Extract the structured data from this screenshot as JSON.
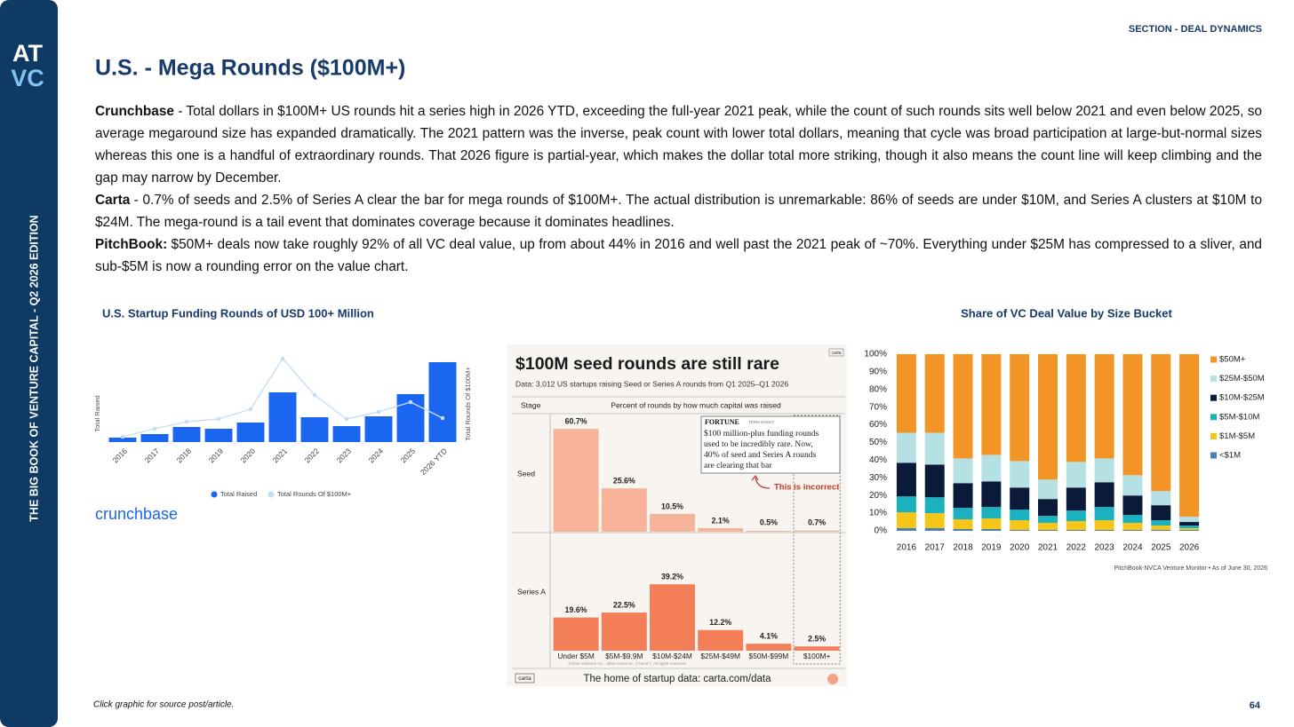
{
  "sidebar": {
    "title": "THE BIG BOOK OF VENTURE CAPITAL - Q2 2026 EDITION",
    "logo_top": "AT",
    "logo_bottom": "VC"
  },
  "header": {
    "section": "SECTION - DEAL DYNAMICS",
    "title": "U.S. - Mega Rounds ($100M+)"
  },
  "paragraphs": [
    {
      "lead": "Crunchbase",
      "text": "- Total dollars in $100M+ US rounds hit a series high in 2026 YTD, exceeding the full-year 2021 peak, while the count of such rounds sits well below 2021 and even below 2025, so average megaround size has expanded dramatically. The 2021 pattern was the inverse, peak count with lower total dollars, meaning that cycle was broad participation at large-but-normal sizes whereas this one is a handful of extraordinary rounds. That 2026 figure is partial-year, which makes the dollar total more striking, though it also means the count line will keep climbing and the gap may narrow by December."
    },
    {
      "lead": "Carta",
      "text": "- 0.7% of seeds and 2.5% of Series A clear the bar for mega rounds of $100M+. The actual distribution is unremarkable: 86% of seeds are under $10M, and Series A clusters at $10M to $24M. The mega-round is a tail event that dominates coverage because it dominates headlines."
    },
    {
      "lead": "PitchBook:",
      "text": "$50M+ deals now take roughly 92% of all VC deal value, up from about 44% in 2016 and well past the 2021 peak of ~70%. Everything under $25M has compressed to a sliver, and sub-$5M is now a rounding error on the value chart."
    }
  ],
  "chart_data": [
    {
      "type": "combo",
      "title": "U.S. Startup Funding Rounds of USD 100+ Million",
      "ylabel": "Total Raised",
      "y2label": "Total Rounds Of $100M+",
      "categories": [
        "2016",
        "2017",
        "2018",
        "2019",
        "2020",
        "2021",
        "2022",
        "2023",
        "2024",
        "2025",
        "2026 YTD"
      ],
      "series": [
        {
          "name": "Total Raised",
          "type": "bar",
          "color": "#1a66f0",
          "values": [
            5,
            9,
            17,
            15,
            22,
            56,
            28,
            18,
            29,
            54,
            90
          ]
        },
        {
          "name": "Total Rounds Of $100M+",
          "type": "line",
          "axis": "y2",
          "color": "#c5dcf7",
          "values": [
            6,
            15,
            23,
            26,
            37,
            94,
            53,
            26,
            34,
            45,
            27
          ]
        }
      ],
      "ylim": [
        0,
        100
      ],
      "y2lim": [
        0,
        100
      ],
      "source": "crunchbase"
    },
    {
      "type": "bar",
      "title": "$100M seed rounds are still rare",
      "subtitle": "Data: 3,012 US startups raising Seed or Series A rounds from Q1 2025–Q1 2026",
      "stage_label": "Stage",
      "header": "Percent of rounds by how much capital was raised",
      "logo": "carta",
      "categories": [
        "Under $5M",
        "$5M-$9.9M",
        "$10M-$24M",
        "$25M-$49M",
        "$50M-$99M",
        "$100M+"
      ],
      "series": [
        {
          "name": "Seed",
          "color": "#f8b49b",
          "values": [
            60.7,
            25.6,
            10.5,
            2.1,
            0.5,
            0.7
          ],
          "value_labels": [
            "60.7%",
            "25.6%",
            "10.5%",
            "2.1%",
            "0.5%",
            "0.7%"
          ]
        },
        {
          "name": "Series A",
          "color": "#f47e57",
          "values": [
            19.6,
            22.5,
            39.2,
            12.2,
            4.1,
            2.5
          ],
          "value_labels": [
            "19.6%",
            "22.5%",
            "39.2%",
            "12.2%",
            "4.1%",
            "2.5%"
          ]
        }
      ],
      "ylim": [
        0,
        65
      ],
      "annotation": {
        "source": "FORTUNE",
        "section": "TERM SHEET",
        "quote": [
          "$100 million-plus funding rounds",
          "used to be incredibly rare. Now,",
          "40% of seed and Series A rounds",
          "are clearing that bar"
        ],
        "callout": "This is incorrect"
      },
      "copyright": "©2026 eShares Inc., d/b/a Carta Inc. (\"Carta\"). All rights reserved.",
      "footer": "The home of startup data: carta.com/data"
    },
    {
      "type": "stacked_bar",
      "title": "Share of VC Deal Value by Size Bucket",
      "categories": [
        "2016",
        "2017",
        "2018",
        "2019",
        "2020",
        "2021",
        "2022",
        "2023",
        "2024",
        "2025",
        "2026"
      ],
      "series": [
        {
          "name": "<$1M",
          "color": "#4a7fb0",
          "values": [
            1.5,
            1.5,
            1,
            1,
            0.5,
            0.5,
            0.5,
            0.5,
            0.5,
            0.5,
            0.5
          ]
        },
        {
          "name": "$1M-$5M",
          "color": "#f5c518",
          "values": [
            9,
            8.5,
            5.5,
            6,
            5.5,
            4,
            5,
            5.5,
            4,
            2.5,
            1
          ]
        },
        {
          "name": "$5M-$10M",
          "color": "#1bb1bf",
          "values": [
            9,
            9,
            6.5,
            6.5,
            6,
            4,
            6,
            7.5,
            4.5,
            3,
            1.5
          ]
        },
        {
          "name": "$10M-$25M",
          "color": "#0c1a3a",
          "values": [
            19,
            18.5,
            14,
            14.5,
            12.5,
            9.5,
            13,
            14,
            11,
            8.5,
            2
          ]
        },
        {
          "name": "$25M-$50M",
          "color": "#b5e0e4",
          "values": [
            17,
            18,
            14,
            15,
            15,
            11,
            14.5,
            13.5,
            11.5,
            8,
            3
          ]
        },
        {
          "name": "$50M+",
          "color": "#f39427",
          "values": [
            44.5,
            44.5,
            59,
            57,
            60.5,
            71,
            61,
            59,
            68.5,
            77.5,
            92
          ]
        }
      ],
      "ylim": [
        0,
        100
      ],
      "yticks": [
        {
          "value": 0,
          "label": "0%"
        },
        {
          "value": 10,
          "label": "10%"
        },
        {
          "value": 20,
          "label": "20%"
        },
        {
          "value": 30,
          "label": "30%"
        },
        {
          "value": 40,
          "label": "40%"
        },
        {
          "value": 50,
          "label": "50%"
        },
        {
          "value": 60,
          "label": "60%"
        },
        {
          "value": 70,
          "label": "70%"
        },
        {
          "value": 80,
          "label": "80%"
        },
        {
          "value": 90,
          "label": "90%"
        },
        {
          "value": 100,
          "label": "100%"
        }
      ],
      "source": "PitchBook-NVCA Venture Monitor • As of June 30, 2026"
    }
  ],
  "footer": {
    "note": "Click graphic for source post/article.",
    "page": "64"
  }
}
